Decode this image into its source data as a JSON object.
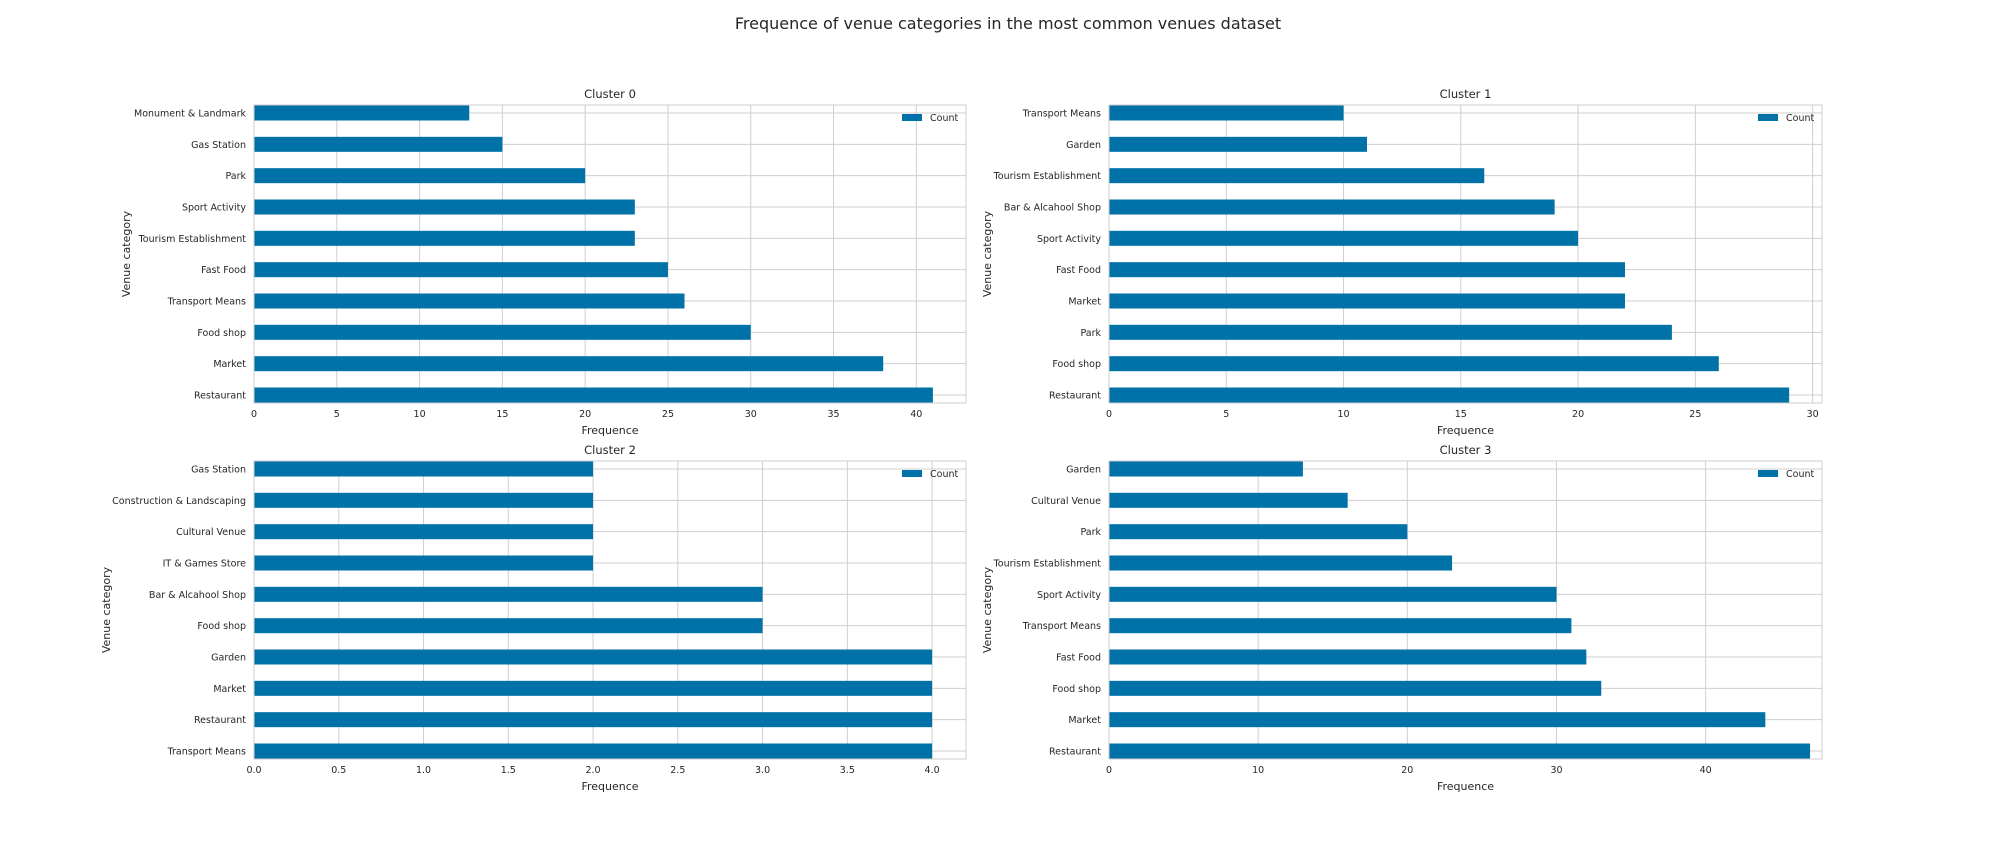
{
  "figure": {
    "title": "Frequence of venue categories in the most common venues dataset",
    "bar_color": "#0072a7"
  },
  "chart_data": [
    {
      "type": "bar",
      "orientation": "horizontal",
      "title": "Cluster 0",
      "xlabel": "Frequence",
      "ylabel": "Venue category",
      "xlim": [
        0,
        43
      ],
      "xticks": [
        0,
        5,
        10,
        15,
        20,
        25,
        30,
        35,
        40
      ],
      "tick_decimals": 0,
      "legend": "top-right",
      "grid": true,
      "categories": [
        "Restaurant",
        "Market",
        "Food shop",
        "Transport Means",
        "Fast Food",
        "Tourism Establishment",
        "Sport Activity",
        "Park",
        "Gas Station",
        "Monument & Landmark"
      ],
      "series": [
        {
          "name": "Count",
          "values": [
            41,
            38,
            30,
            26,
            25,
            23,
            23,
            20,
            15,
            13
          ]
        }
      ]
    },
    {
      "type": "bar",
      "orientation": "horizontal",
      "title": "Cluster 1",
      "xlabel": "Frequence",
      "ylabel": "Venue category",
      "xlim": [
        0,
        30.4
      ],
      "xticks": [
        0,
        5,
        10,
        15,
        20,
        25,
        30
      ],
      "tick_decimals": 0,
      "legend": "top-right",
      "grid": true,
      "categories": [
        "Restaurant",
        "Food shop",
        "Park",
        "Market",
        "Fast Food",
        "Sport Activity",
        "Bar & Alcahool Shop",
        "Tourism Establishment",
        "Garden",
        "Transport Means"
      ],
      "series": [
        {
          "name": "Count",
          "values": [
            29,
            26,
            24,
            22,
            22,
            20,
            19,
            16,
            11,
            10
          ]
        }
      ]
    },
    {
      "type": "bar",
      "orientation": "horizontal",
      "title": "Cluster 2",
      "xlabel": "Frequence",
      "ylabel": "Venue category",
      "xlim": [
        0,
        4.2
      ],
      "xticks": [
        0,
        0.5,
        1,
        1.5,
        2,
        2.5,
        3,
        3.5,
        4
      ],
      "tick_decimals": 1,
      "legend": "top-right",
      "grid": true,
      "categories": [
        "Transport Means",
        "Restaurant",
        "Market",
        "Garden",
        "Food shop",
        "Bar & Alcahool Shop",
        "IT & Games Store",
        "Cultural Venue",
        "Construction & Landscaping",
        "Gas Station"
      ],
      "series": [
        {
          "name": "Count",
          "values": [
            4,
            4,
            4,
            4,
            3,
            3,
            2,
            2,
            2,
            2
          ]
        }
      ]
    },
    {
      "type": "bar",
      "orientation": "horizontal",
      "title": "Cluster 3",
      "xlabel": "Frequence",
      "ylabel": "Venue category",
      "xlim": [
        0,
        47.8
      ],
      "xticks": [
        0,
        10,
        20,
        30,
        40
      ],
      "tick_decimals": 0,
      "legend": "top-right",
      "grid": true,
      "categories": [
        "Restaurant",
        "Market",
        "Food shop",
        "Fast Food",
        "Transport Means",
        "Sport Activity",
        "Tourism Establishment",
        "Park",
        "Cultural Venue",
        "Garden"
      ],
      "series": [
        {
          "name": "Count",
          "values": [
            47,
            44,
            33,
            32,
            31,
            30,
            23,
            20,
            16,
            13
          ]
        }
      ]
    }
  ]
}
